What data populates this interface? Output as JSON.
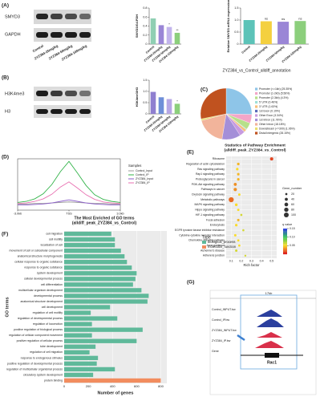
{
  "panel_labels": [
    "(A)",
    "(B)",
    "(C)",
    "(D)",
    "(E)",
    "(F)",
    "(G)"
  ],
  "blots": [
    {
      "bands": [
        "SMYD3",
        "GAPDH"
      ],
      "lanes": [
        "Control",
        "ZYZ384-25mg/kg",
        "ZYZ384-50mg/kg",
        "ZYZ384-100mg/kg"
      ]
    },
    {
      "bands": [
        "H3K4me3",
        "H3"
      ]
    }
  ],
  "tracks": {
    "scale": "17kb",
    "rows": [
      "Control_INPUT.bw",
      "Control_IP.bw",
      "ZYZ384_INPUT.bw",
      "ZYZ384_IP.bw",
      "Gene"
    ],
    "gene": "Rac1"
  },
  "chart_data": [
    {
      "type": "bar",
      "y_label": "SMYD3/GAPDH",
      "categories": [
        "Control",
        "ZYZ384-25mg/kg",
        "ZYZ384-50mg/kg",
        "ZYZ384-100mg/kg"
      ],
      "values": [
        0.57,
        0.42,
        0.38,
        0.25
      ],
      "colors": [
        "#8fcfb3",
        "#9a86d6",
        "#c2b4ec",
        "#8ccf7c"
      ],
      "significance": [
        null,
        null,
        "*",
        "**"
      ],
      "ylim": [
        0,
        0.8
      ],
      "yticks": [
        0,
        0.2,
        0.4,
        0.6,
        0.8
      ]
    },
    {
      "type": "bar",
      "y_label": "Relative SMYD3 mRNA expression",
      "categories": [
        "Control",
        "ZYZ384-25mg/kg",
        "ZYZ384-50mg/kg",
        "ZYZ384-100mg/kg"
      ],
      "values": [
        1,
        0.95,
        0.93,
        0.96
      ],
      "colors": [
        "#5cc3b8",
        "#f4d03f",
        "#9a86d6",
        "#8ccf7c"
      ],
      "significance": [
        null,
        "ns",
        "ns",
        "ns"
      ],
      "ylim": [
        0,
        1.5
      ],
      "yticks": [
        0,
        0.5,
        {
          "value": 1,
          "label": "1.0"
        },
        1.5
      ]
    },
    {
      "type": "bar",
      "y_label": "H3K4me3/H3",
      "categories": [
        "Control",
        "ZYZ384-25mg/kg",
        "ZYZ384-50mg/kg",
        "ZYZ384-100mg/kg"
      ],
      "values": [
        0.98,
        0.74,
        0.66,
        0.45
      ],
      "colors": [
        "#8f7fd0",
        "#6f8fd8",
        "#b7a7e6",
        "#8ccf7c"
      ],
      "significance": [
        null,
        null,
        null,
        "*"
      ],
      "ylim": [
        0,
        1.5
      ],
      "yticks": [
        0,
        0.5,
        {
          "value": 1,
          "label": "1.0"
        },
        1.5
      ]
    },
    {
      "type": "pie",
      "title": "ZYZ384_vs_Control_alldiff_annotation",
      "categories": [
        "Promoter (<=1kb) (25.35%)",
        "Promoter (1-2kb) (5.56%)",
        "Promoter (2-3kb) (4.3%)",
        "5' UTR (0.46%)",
        "3' UTR (1.63%)",
        "1st Exon (0.19%)",
        "Other Exon (3.34%)",
        "1st Intron (11.78%)",
        "Other Intron (18.18%)",
        "Downstream (<=300) (1.06%)",
        "Distal Intergenic (28.15%)"
      ],
      "values": [
        25.35,
        5.56,
        4.3,
        0.46,
        1.63,
        0.19,
        3.34,
        11.78,
        18.18,
        1.06,
        28.15
      ],
      "colors": [
        "#8ec5e8",
        "#f3a6c8",
        "#b7e08a",
        "#9fe0d8",
        "#f7c07a",
        "#5b6bb8",
        "#c79be0",
        "#a48fd8",
        "#f2b49b",
        "#e8e070",
        "#c0521f"
      ]
    },
    {
      "type": "line",
      "legend_title": "Samples",
      "x": [
        -3,
        -2.5,
        -2,
        -1.5,
        -1,
        -0.5,
        0,
        0.5,
        1,
        1.5,
        2,
        2.5,
        3
      ],
      "series": [
        {
          "name": "Control_Input",
          "color": "#9a9a9a",
          "values": [
            0.12,
            0.12,
            0.13,
            0.13,
            0.14,
            0.15,
            0.16,
            0.15,
            0.14,
            0.13,
            0.13,
            0.12,
            0.12
          ]
        },
        {
          "name": "Control_IP",
          "color": "#33b34a",
          "values": [
            0.15,
            0.17,
            0.22,
            0.32,
            0.5,
            0.75,
            0.95,
            0.72,
            0.48,
            0.3,
            0.21,
            0.17,
            0.15
          ]
        },
        {
          "name": "ZYZ384_Input",
          "color": "#8a5cc8",
          "values": [
            0.1,
            0.1,
            0.11,
            0.12,
            0.14,
            0.17,
            0.2,
            0.17,
            0.14,
            0.12,
            0.11,
            0.1,
            0.1
          ]
        },
        {
          "name": "ZYZ384_IP",
          "color": "#e86fb0",
          "values": [
            0.13,
            0.14,
            0.17,
            0.22,
            0.31,
            0.45,
            0.55,
            0.43,
            0.3,
            0.21,
            0.16,
            0.14,
            0.13
          ]
        }
      ],
      "xlim": [
        -3,
        3
      ],
      "xticks": [
        {
          "value": -3,
          "label": "-3.0kb"
        },
        {
          "value": 0,
          "label": "TSS"
        },
        {
          "value": 3,
          "label": "3.0kb"
        }
      ],
      "ylim": [
        0,
        1
      ]
    },
    {
      "type": "dot",
      "title": "Statistics of Pathway Enrichment",
      "subtitle": "(alldiff_peak_ZYZ384_vs_Control)",
      "x_label": "Rich factor",
      "categories": [
        "Ribosome",
        "Regulation of actin cytoskeleton",
        "Ras signaling pathway",
        "Rap1 signaling pathway",
        "Proteoglycans in cancer",
        "PI3K-Akt signaling pathway",
        "Pathways in cancer",
        "Oxytocin signaling pathway",
        "Metabolic pathways",
        "MAPK signaling pathway",
        "Hippo signaling pathway",
        "HIF-1 signaling pathway",
        "Focal adhesion",
        "Endocytosis",
        "EGFR tyrosine kinase inhibitor resistance",
        "Cytokine-cytokine receptor interaction",
        "Chemokine signaling pathway",
        "Axon guidance",
        "Alzheimer's disease",
        "Adherens junction"
      ],
      "rich_factor": [
        0.5,
        0.17,
        0.16,
        0.17,
        0.17,
        0.14,
        0.14,
        0.18,
        0.1,
        0.15,
        0.17,
        0.2,
        0.17,
        0.15,
        0.22,
        0.14,
        0.17,
        0.18,
        0.15,
        0.24
      ],
      "gene_number": [
        45,
        30,
        28,
        28,
        28,
        40,
        48,
        25,
        110,
        32,
        24,
        20,
        27,
        28,
        18,
        25,
        22,
        22,
        25,
        16
      ],
      "q_value": [
        0.01,
        0.04,
        0.05,
        0.04,
        0.04,
        0.03,
        0.03,
        0.05,
        0.02,
        0.05,
        0.05,
        0.06,
        0.04,
        0.05,
        0.06,
        0.05,
        0.05,
        0.05,
        0.06,
        0.06
      ],
      "xlim": [
        0.05,
        0.55
      ],
      "xticks": [
        0.1,
        0.2,
        0.3,
        0.4,
        0.5
      ],
      "size_title": "Gene_number",
      "size_ticks": [
        20,
        40,
        60,
        80,
        100
      ],
      "color_title": "q value",
      "qlim": [
        0,
        0.15
      ],
      "qticks": [
        0.05,
        {
          "value": 0.1,
          "label": "0.10"
        },
        0.15
      ]
    },
    {
      "type": "hbar",
      "title": "The Most Enriched of GO terms",
      "subtitle": "(alldiff_peak_ZYZ384_vs_Control)",
      "x_label": "Number of genes",
      "y_label": "GO terms",
      "legend_title": "Type",
      "type_names": [
        "biological_process",
        "molecular_function"
      ],
      "type_colors": [
        "#5fb99a",
        "#f28c5e"
      ],
      "categories": [
        "cell migration",
        "cell motility",
        "localization of cell",
        "movement of cell or subcellular component",
        "anatomical structure morphogenesis",
        "cellular response to organic substance",
        "response to organic substance",
        "system development",
        "cellular developmental process",
        "cell differentiation",
        "multicellular organism development",
        "developmental process",
        "anatomical structure development",
        "cell development",
        "regulation of cell motility",
        "regulation of developmental process",
        "regulation of locomotion",
        "positive regulation of biological process",
        "regulation of cellular component movement",
        "positive regulation of cellular process",
        "tube development",
        "regulation of cell migration",
        "response to endogenous stimulus",
        "positive regulation of developmental process",
        "regulation of multicellular organismal process",
        "circulatory system development",
        "protein binding"
      ],
      "values": [
        390,
        420,
        420,
        470,
        500,
        520,
        560,
        600,
        590,
        570,
        640,
        700,
        690,
        380,
        220,
        440,
        230,
        650,
        230,
        600,
        260,
        210,
        280,
        270,
        420,
        240,
        800
      ],
      "value_types": [
        0,
        0,
        0,
        0,
        0,
        0,
        0,
        0,
        0,
        0,
        0,
        0,
        0,
        0,
        0,
        0,
        0,
        0,
        0,
        0,
        0,
        0,
        0,
        0,
        0,
        0,
        1
      ],
      "xlim": [
        0,
        850
      ],
      "xticks": [
        0,
        200,
        400,
        600,
        800
      ]
    }
  ]
}
